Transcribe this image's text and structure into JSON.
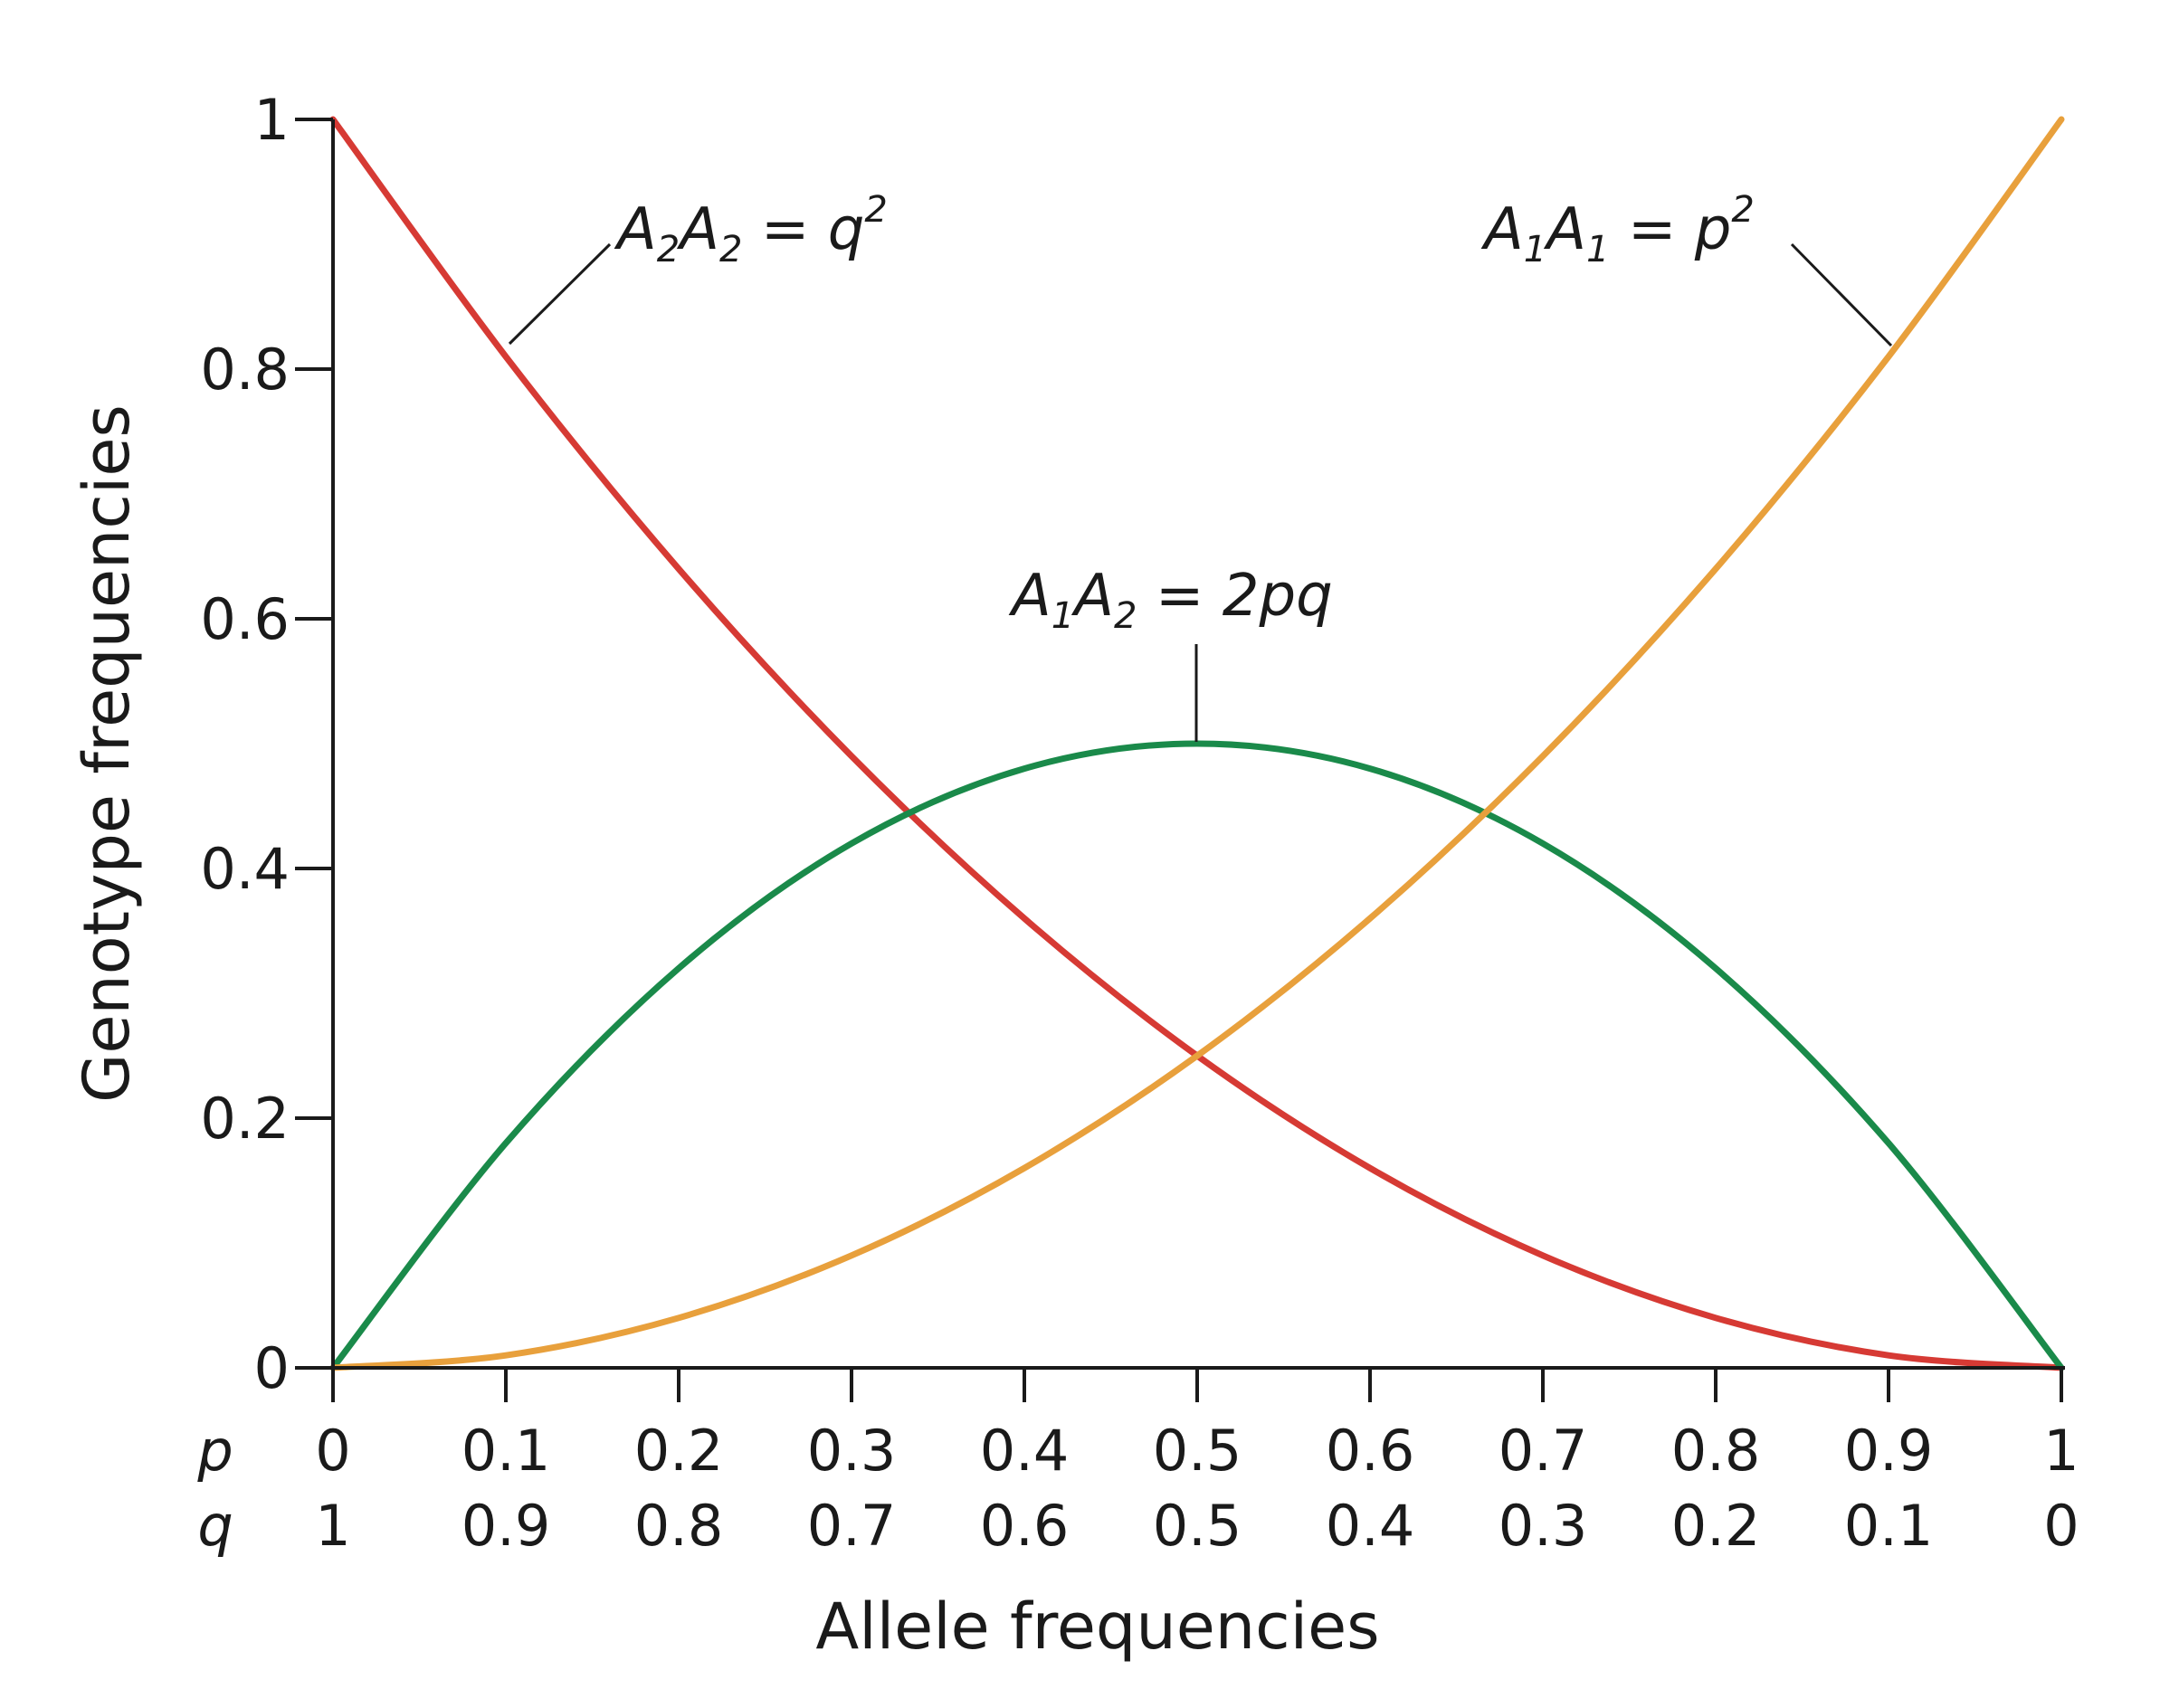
{
  "chart_data": {
    "type": "line",
    "x_row1_label": "p",
    "x_row2_label": "q",
    "p_ticks": [
      "0",
      "0.1",
      "0.2",
      "0.3",
      "0.4",
      "0.5",
      "0.6",
      "0.7",
      "0.8",
      "0.9",
      "1"
    ],
    "q_ticks": [
      "1",
      "0.9",
      "0.8",
      "0.7",
      "0.6",
      "0.5",
      "0.4",
      "0.3",
      "0.2",
      "0.1",
      "0"
    ],
    "y_ticks": [
      "0",
      "0.2",
      "0.4",
      "0.6",
      "0.8",
      "1"
    ],
    "xlabel": "Allele frequencies",
    "ylabel": "Genotype frequencies",
    "xlim": [
      0,
      1
    ],
    "ylim": [
      0,
      1
    ],
    "x": [
      0,
      0.1,
      0.2,
      0.3,
      0.4,
      0.5,
      0.6,
      0.7,
      0.8,
      0.9,
      1
    ],
    "series": [
      {
        "id": "A2A2",
        "color": "#d63a34",
        "values": [
          1,
          0.81,
          0.64,
          0.49,
          0.36,
          0.25,
          0.16,
          0.09,
          0.04,
          0.01,
          0
        ]
      },
      {
        "id": "A1A2",
        "color": "#1a8a4a",
        "values": [
          0,
          0.18,
          0.32,
          0.42,
          0.48,
          0.5,
          0.48,
          0.42,
          0.32,
          0.18,
          0
        ]
      },
      {
        "id": "A1A1",
        "color": "#e8a03c",
        "values": [
          0,
          0.01,
          0.04,
          0.09,
          0.16,
          0.25,
          0.36,
          0.49,
          0.64,
          0.81,
          1
        ]
      }
    ],
    "annotations": {
      "A2A2": {
        "a1": "A",
        "s1": "2",
        "a2": "A",
        "s2": "2",
        "eq": " = ",
        "expr": "q",
        "sup": "2"
      },
      "A1A1": {
        "a1": "A",
        "s1": "1",
        "a2": "A",
        "s2": "1",
        "eq": " =  ",
        "expr": "p",
        "sup": "2"
      },
      "A1A2": {
        "a1": "A",
        "s1": "1",
        "a2": "A",
        "s2": "2",
        "eq": " = ",
        "expr": "2pq"
      }
    },
    "grid": false,
    "legend": "none"
  }
}
